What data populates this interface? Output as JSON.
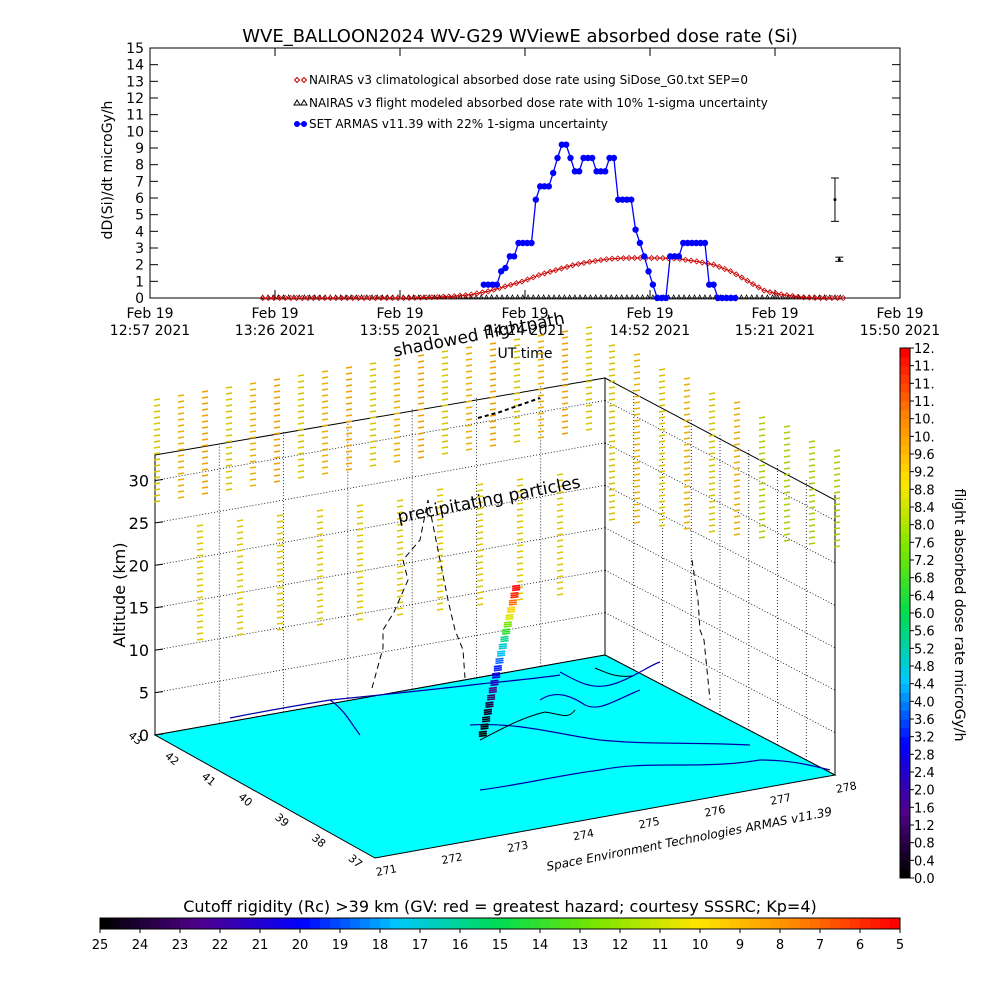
{
  "chart_data": [
    {
      "type": "line",
      "title": "WVE_BALLOON2024 WV-G29 WViewE absorbed dose rate (Si)",
      "xlabel": "UT time",
      "ylabel": "dD(Si)/dt microGy/h",
      "ylim": [
        0,
        15
      ],
      "yticks": [
        "0",
        "1",
        "2",
        "3",
        "4",
        "5",
        "6",
        "7",
        "8",
        "9",
        "10",
        "11",
        "12",
        "13",
        "14",
        "15"
      ],
      "xticks": [
        {
          "line1": "Feb 19",
          "line2": "12:57 2021"
        },
        {
          "line1": "Feb 19",
          "line2": "13:26 2021"
        },
        {
          "line1": "Feb 19",
          "line2": "13:55 2021"
        },
        {
          "line1": "Feb 19",
          "line2": "14:24 2021"
        },
        {
          "line1": "Feb 19",
          "line2": "14:52 2021"
        },
        {
          "line1": "Feb 19",
          "line2": "15:21 2021"
        },
        {
          "line1": "Feb 19",
          "line2": "15:50 2021"
        }
      ],
      "legend_position": "top-center",
      "legend": [
        "NAIRAS v3 climatological absorbed dose rate using SiDose_G0.txt SEP=0",
        "NAIRAS v3 flight modeled absorbed dose rate with 10% 1-sigma uncertainty",
        "SET ARMAS v11.39 with 22% 1-sigma uncertainty"
      ],
      "series": [
        {
          "name": "SET ARMAS v11.39 with 22% 1-sigma uncertainty",
          "color": "#0000ff",
          "t_min": [
            77,
            78,
            79,
            80,
            81,
            82,
            83,
            84,
            85,
            86,
            87,
            88,
            89,
            90,
            91,
            92,
            93,
            94,
            95,
            96,
            97,
            98,
            99,
            100,
            101,
            102,
            103,
            104,
            105,
            106,
            107,
            108,
            109,
            110,
            111,
            112,
            113,
            114,
            115,
            116,
            117,
            118,
            119,
            120,
            121,
            122,
            123,
            124,
            125,
            126,
            127,
            128,
            129,
            130,
            131,
            132,
            133,
            134,
            135
          ],
          "values": [
            0.8,
            0.8,
            0.8,
            0.8,
            1.6,
            1.8,
            2.5,
            2.5,
            3.3,
            3.3,
            3.3,
            3.3,
            5.9,
            6.7,
            6.7,
            6.7,
            7.5,
            8.4,
            9.2,
            9.2,
            8.4,
            7.6,
            7.6,
            8.4,
            8.4,
            8.4,
            7.6,
            7.6,
            7.6,
            8.4,
            8.4,
            5.9,
            5.9,
            5.9,
            5.9,
            4.1,
            3.3,
            2.5,
            1.6,
            0.8,
            0,
            0,
            0,
            2.5,
            2.5,
            2.5,
            3.3,
            3.3,
            3.3,
            3.3,
            3.3,
            3.3,
            0.8,
            0.8,
            0,
            0,
            0,
            0,
            0
          ]
        },
        {
          "name": "NAIRAS v3 climatological absorbed dose rate using SiDose_G0.txt SEP=0",
          "color": "#cc0000",
          "t_min": [
            26,
            60,
            66,
            70,
            74,
            78,
            82,
            86,
            90,
            94,
            98,
            102,
            106,
            110,
            114,
            118,
            122,
            126,
            130,
            134,
            138,
            142,
            146,
            150,
            154,
            160
          ],
          "values": [
            0,
            0,
            0.05,
            0.1,
            0.2,
            0.4,
            0.7,
            1.0,
            1.4,
            1.7,
            2.0,
            2.2,
            2.35,
            2.4,
            2.4,
            2.4,
            2.35,
            2.2,
            2.0,
            1.6,
            1.0,
            0.4,
            0.2,
            0.05,
            0,
            0
          ]
        },
        {
          "name": "NAIRAS v3 flight modeled absorbed dose rate with 10% 1-sigma uncertainty",
          "color": "#000000",
          "t_min": [
            26,
            160
          ],
          "values": [
            0,
            0
          ]
        }
      ],
      "error_bars": [
        {
          "t_min": 158.0,
          "value": 5.9,
          "low": 4.6,
          "high": 7.2
        },
        {
          "t_min": 159.0,
          "value": 2.3,
          "low": 2.2,
          "high": 2.45
        }
      ]
    },
    {
      "type": "scatter",
      "subtype": "3d-flight-path",
      "zlabel": "Altitude (km)",
      "zticks": [
        "0",
        "5",
        "10",
        "15",
        "20",
        "25",
        "30"
      ],
      "zlim": [
        0,
        33
      ],
      "lat_ticks": [
        "37",
        "38",
        "39",
        "40",
        "41",
        "42",
        "43"
      ],
      "lon_ticks": [
        "271",
        "272",
        "273",
        "274",
        "275",
        "276",
        "277",
        "278"
      ],
      "annotations": [
        "precipitating particles",
        "shadowed flightpath"
      ],
      "credit": "Space Environment Technologies ARMAS v11.39",
      "colorbar": {
        "title": "flight absorbed dose rate microGy/h",
        "labels": [
          "0.0",
          "0.4",
          "0.8",
          "1.2",
          "1.6",
          "2.0",
          "2.4",
          "2.8",
          "3.2",
          "3.6",
          "4.0",
          "4.4",
          "4.8",
          "5.2",
          "5.6",
          "6.0",
          "6.4",
          "6.8",
          "7.2",
          "7.6",
          "8.0",
          "8.4",
          "8.8",
          "9.2",
          "9.6",
          "10.",
          "10.",
          "11.",
          "11.",
          "11.",
          "12."
        ]
      },
      "rigidity_bar": {
        "title": "Cutoff rigidity (Rc) >39 km (GV: red = greatest hazard; courtesy SSSRC; Kp=4)",
        "labels": [
          "25",
          "24",
          "23",
          "22",
          "21",
          "20",
          "19",
          "18",
          "17",
          "16",
          "15",
          "14",
          "13",
          "12",
          "11",
          "10",
          "9",
          "8",
          "7",
          "6",
          "5"
        ]
      },
      "flight_points": [
        {
          "alt_km": 0.5,
          "dose": 0.0
        },
        {
          "alt_km": 1.5,
          "dose": 0.1
        },
        {
          "alt_km": 2.5,
          "dose": 0.2
        },
        {
          "alt_km": 3.5,
          "dose": 0.3
        },
        {
          "alt_km": 4.5,
          "dose": 0.6
        },
        {
          "alt_km": 5.5,
          "dose": 1.0
        },
        {
          "alt_km": 6.5,
          "dose": 1.5
        },
        {
          "alt_km": 7.5,
          "dose": 2.2
        },
        {
          "alt_km": 8.5,
          "dose": 2.8
        },
        {
          "alt_km": 9.5,
          "dose": 3.2
        },
        {
          "alt_km": 10.5,
          "dose": 3.7
        },
        {
          "alt_km": 11.5,
          "dose": 4.4
        },
        {
          "alt_km": 12.5,
          "dose": 4.8
        },
        {
          "alt_km": 13.5,
          "dose": 5.5
        },
        {
          "alt_km": 14.5,
          "dose": 6.6
        },
        {
          "alt_km": 15.5,
          "dose": 7.4
        },
        {
          "alt_km": 16.5,
          "dose": 8.6
        },
        {
          "alt_km": 17.5,
          "dose": 9.3
        },
        {
          "alt_km": 18.5,
          "dose": 10.8
        },
        {
          "alt_km": 19.5,
          "dose": 11.6
        },
        {
          "alt_km": 20.5,
          "dose": 12.0
        }
      ]
    }
  ]
}
